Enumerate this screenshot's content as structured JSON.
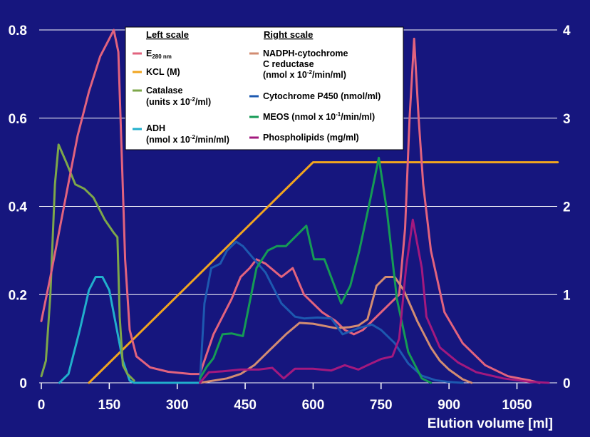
{
  "chart_data": {
    "type": "line",
    "xlabel": "Elution volume [ml]",
    "xlim": [
      0,
      1140
    ],
    "x_ticks": [
      "0",
      "150",
      "300",
      "450",
      "600",
      "750",
      "900",
      "1050"
    ],
    "y_left_ticks": [
      "0",
      "0.2",
      "0.4",
      "0.6",
      "0.8"
    ],
    "y_right_ticks": [
      "0",
      "1",
      "2",
      "3",
      "4"
    ],
    "ylim_left": [
      0,
      0.8
    ],
    "ylim_right": [
      0,
      4
    ],
    "grid": "horizontal",
    "legend_position": "top-center",
    "legend": {
      "left_header": "Left scale",
      "right_header": "Right scale",
      "left_entries": [
        {
          "series": "e280",
          "lines": [
            "E"
          ],
          "sub": "280 nm"
        },
        {
          "series": "kcl",
          "lines": [
            "KCL (M)"
          ]
        },
        {
          "series": "catalase",
          "lines": [
            "Catalase",
            "(units x 10",
            ")"
          ],
          "sup": "-2",
          "suffix": "/ml)"
        },
        {
          "series": "adh",
          "lines": [
            "ADH",
            "(nmol x 10",
            "/min/ml)"
          ],
          "sup": "-2"
        }
      ],
      "right_entries": [
        {
          "series": "nadph",
          "lines": [
            "NADPH-cytochrome",
            "C reductase",
            "(nmol x 10",
            "/min/ml)"
          ],
          "sup": "-2"
        },
        {
          "series": "p450",
          "lines": [
            "Cytochrome P450 (nmol/ml)"
          ]
        },
        {
          "series": "meos",
          "lines": [
            "MEOS (nmol x 10",
            "/min/ml)"
          ],
          "sup": "-1"
        },
        {
          "series": "phospho",
          "lines": [
            "Phospholipids (mg/ml)"
          ]
        }
      ]
    },
    "series": [
      {
        "key": "e280",
        "name": "E280 nm",
        "axis": "left",
        "color": "#e2637e",
        "points": [
          [
            0,
            0.14
          ],
          [
            20,
            0.24
          ],
          [
            50,
            0.4
          ],
          [
            80,
            0.56
          ],
          [
            105,
            0.66
          ],
          [
            130,
            0.74
          ],
          [
            150,
            0.78
          ],
          [
            160,
            0.8
          ],
          [
            170,
            0.75
          ],
          [
            178,
            0.5
          ],
          [
            185,
            0.28
          ],
          [
            195,
            0.12
          ],
          [
            210,
            0.06
          ],
          [
            240,
            0.035
          ],
          [
            280,
            0.025
          ],
          [
            330,
            0.02
          ],
          [
            350,
            0.02
          ],
          [
            380,
            0.11
          ],
          [
            400,
            0.15
          ],
          [
            420,
            0.19
          ],
          [
            440,
            0.24
          ],
          [
            460,
            0.26
          ],
          [
            475,
            0.28
          ],
          [
            495,
            0.27
          ],
          [
            530,
            0.24
          ],
          [
            555,
            0.26
          ],
          [
            580,
            0.2
          ],
          [
            620,
            0.16
          ],
          [
            650,
            0.14
          ],
          [
            670,
            0.12
          ],
          [
            690,
            0.11
          ],
          [
            710,
            0.12
          ],
          [
            730,
            0.14
          ],
          [
            750,
            0.16
          ],
          [
            770,
            0.18
          ],
          [
            790,
            0.2
          ],
          [
            803,
            0.35
          ],
          [
            813,
            0.6
          ],
          [
            823,
            0.78
          ],
          [
            833,
            0.6
          ],
          [
            843,
            0.45
          ],
          [
            860,
            0.3
          ],
          [
            890,
            0.16
          ],
          [
            930,
            0.09
          ],
          [
            980,
            0.04
          ],
          [
            1030,
            0.015
          ],
          [
            1080,
            0.005
          ],
          [
            1100,
            0
          ]
        ]
      },
      {
        "key": "kcl",
        "name": "KCL (M)",
        "axis": "left",
        "color": "#f1a51f",
        "points": [
          [
            105,
            0
          ],
          [
            600,
            0.5
          ],
          [
            1140,
            0.5
          ]
        ]
      },
      {
        "key": "catalase",
        "name": "Catalase",
        "axis": "left",
        "color": "#7da74a",
        "points": [
          [
            0,
            0.015
          ],
          [
            10,
            0.05
          ],
          [
            20,
            0.2
          ],
          [
            30,
            0.45
          ],
          [
            38,
            0.54
          ],
          [
            55,
            0.5
          ],
          [
            75,
            0.45
          ],
          [
            95,
            0.44
          ],
          [
            115,
            0.42
          ],
          [
            140,
            0.37
          ],
          [
            160,
            0.34
          ],
          [
            168,
            0.33
          ],
          [
            173,
            0.15
          ],
          [
            180,
            0.04
          ],
          [
            190,
            0.02
          ],
          [
            205,
            0.005
          ]
        ]
      },
      {
        "key": "adh",
        "name": "ADH",
        "axis": "left",
        "color": "#21afcc",
        "points": [
          [
            40,
            0
          ],
          [
            60,
            0.02
          ],
          [
            85,
            0.12
          ],
          [
            105,
            0.21
          ],
          [
            120,
            0.24
          ],
          [
            135,
            0.24
          ],
          [
            150,
            0.21
          ],
          [
            165,
            0.13
          ],
          [
            180,
            0.05
          ],
          [
            195,
            0.005
          ],
          [
            205,
            0
          ],
          [
            350,
            0
          ]
        ]
      },
      {
        "key": "nadph",
        "name": "NADPH-cytochrome C reductase",
        "axis": "right",
        "color": "#d28c72",
        "points": [
          [
            350,
            0
          ],
          [
            410,
            0.05
          ],
          [
            440,
            0.1
          ],
          [
            470,
            0.2
          ],
          [
            510,
            0.4
          ],
          [
            540,
            0.55
          ],
          [
            570,
            0.68
          ],
          [
            600,
            0.67
          ],
          [
            630,
            0.64
          ],
          [
            650,
            0.62
          ],
          [
            680,
            0.63
          ],
          [
            700,
            0.65
          ],
          [
            720,
            0.72
          ],
          [
            740,
            1.1
          ],
          [
            760,
            1.2
          ],
          [
            780,
            1.2
          ],
          [
            800,
            1.05
          ],
          [
            830,
            0.7
          ],
          [
            860,
            0.4
          ],
          [
            880,
            0.25
          ],
          [
            900,
            0.15
          ],
          [
            930,
            0.04
          ],
          [
            950,
            0
          ]
        ]
      },
      {
        "key": "p450",
        "name": "Cytochrome P450",
        "axis": "right",
        "color": "#1d59b0",
        "points": [
          [
            350,
            0
          ],
          [
            360,
            0.9
          ],
          [
            375,
            1.3
          ],
          [
            395,
            1.35
          ],
          [
            410,
            1.5
          ],
          [
            430,
            1.6
          ],
          [
            445,
            1.55
          ],
          [
            470,
            1.4
          ],
          [
            495,
            1.25
          ],
          [
            510,
            1.1
          ],
          [
            530,
            0.9
          ],
          [
            560,
            0.75
          ],
          [
            580,
            0.73
          ],
          [
            610,
            0.74
          ],
          [
            640,
            0.73
          ],
          [
            665,
            0.55
          ],
          [
            700,
            0.62
          ],
          [
            730,
            0.66
          ],
          [
            750,
            0.6
          ],
          [
            780,
            0.45
          ],
          [
            810,
            0.22
          ],
          [
            840,
            0.08
          ],
          [
            870,
            0.03
          ],
          [
            900,
            0.01
          ],
          [
            930,
            0
          ]
        ]
      },
      {
        "key": "meos",
        "name": "MEOS",
        "axis": "right",
        "color": "#159b55",
        "points": [
          [
            350,
            0.05
          ],
          [
            365,
            0.18
          ],
          [
            380,
            0.28
          ],
          [
            400,
            0.55
          ],
          [
            420,
            0.56
          ],
          [
            445,
            0.53
          ],
          [
            475,
            1.3
          ],
          [
            500,
            1.5
          ],
          [
            520,
            1.55
          ],
          [
            540,
            1.55
          ],
          [
            585,
            1.78
          ],
          [
            602,
            1.4
          ],
          [
            625,
            1.4
          ],
          [
            662,
            0.9
          ],
          [
            682,
            1.1
          ],
          [
            702,
            1.5
          ],
          [
            723,
            2.0
          ],
          [
            745,
            2.55
          ],
          [
            763,
            1.95
          ],
          [
            785,
            0.95
          ],
          [
            810,
            0.35
          ],
          [
            840,
            0.05
          ],
          [
            860,
            0
          ]
        ]
      },
      {
        "key": "phospho",
        "name": "Phospholipids",
        "axis": "right",
        "color": "#a3197e",
        "points": [
          [
            350,
            0
          ],
          [
            370,
            0.12
          ],
          [
            400,
            0.13
          ],
          [
            440,
            0.15
          ],
          [
            480,
            0.15
          ],
          [
            510,
            0.17
          ],
          [
            535,
            0.05
          ],
          [
            560,
            0.16
          ],
          [
            600,
            0.16
          ],
          [
            640,
            0.14
          ],
          [
            670,
            0.2
          ],
          [
            700,
            0.15
          ],
          [
            720,
            0.2
          ],
          [
            750,
            0.27
          ],
          [
            775,
            0.3
          ],
          [
            790,
            0.5
          ],
          [
            805,
            1.3
          ],
          [
            820,
            1.85
          ],
          [
            840,
            1.3
          ],
          [
            850,
            0.75
          ],
          [
            880,
            0.4
          ],
          [
            920,
            0.23
          ],
          [
            960,
            0.12
          ],
          [
            1020,
            0.05
          ],
          [
            1080,
            0.01
          ],
          [
            1120,
            0
          ]
        ]
      }
    ]
  }
}
